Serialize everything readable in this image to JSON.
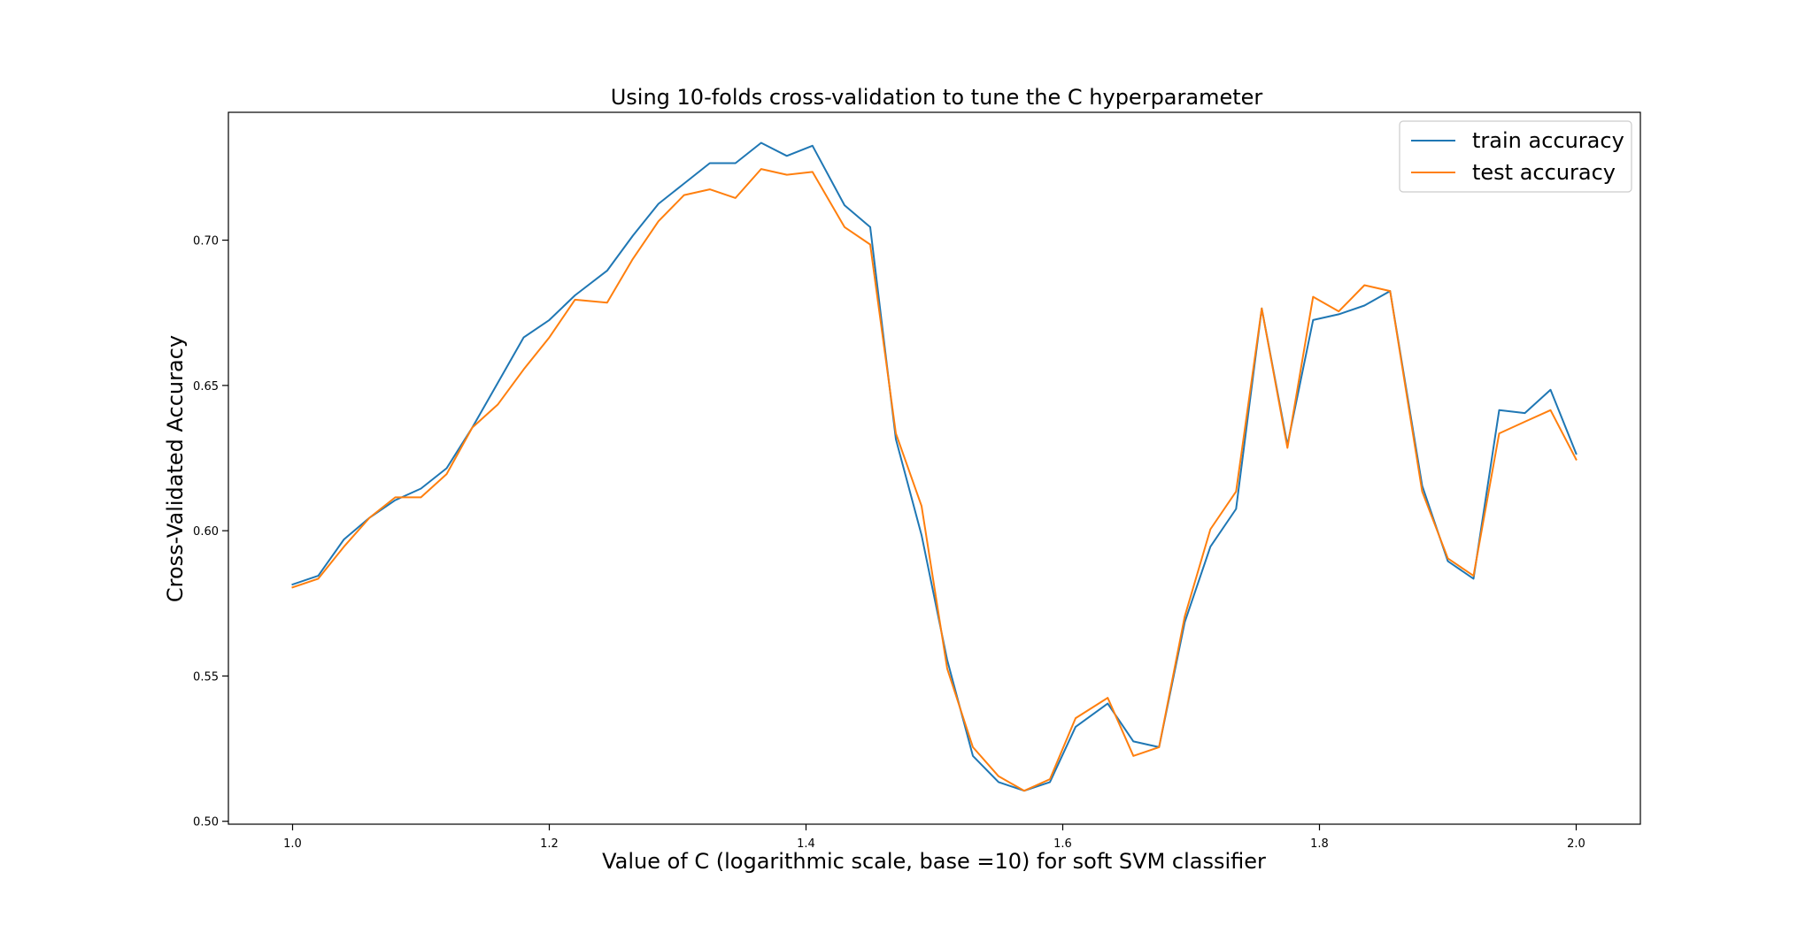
{
  "chart_data": {
    "type": "line",
    "title": "Using 10-folds cross-validation to tune the C hyperparameter",
    "xlabel": "Value of C (logarithmic scale, base =10) for soft SVM classifier",
    "ylabel": "Cross-Validated Accuracy",
    "xlim": [
      0.95,
      2.05
    ],
    "ylim": [
      0.499,
      0.744
    ],
    "xticks": [
      1.0,
      1.2,
      1.4,
      1.6,
      1.8,
      2.0
    ],
    "xtick_labels": [
      "1.0",
      "1.2",
      "1.4",
      "1.6",
      "1.8",
      "2.0"
    ],
    "yticks": [
      0.5,
      0.55,
      0.6,
      0.65,
      0.7
    ],
    "ytick_labels": [
      "0.50",
      "0.55",
      "0.60",
      "0.65",
      "0.70"
    ],
    "grid": false,
    "legend_position": "upper-right",
    "series": [
      {
        "name": "train accuracy",
        "color": "#1f77b4",
        "x": [
          1.0,
          1.02,
          1.04,
          1.06,
          1.08,
          1.1,
          1.12,
          1.14,
          1.16,
          1.18,
          1.2,
          1.22,
          1.245,
          1.265,
          1.285,
          1.305,
          1.325,
          1.345,
          1.365,
          1.385,
          1.405,
          1.43,
          1.45,
          1.47,
          1.49,
          1.51,
          1.53,
          1.55,
          1.57,
          1.59,
          1.61,
          1.635,
          1.655,
          1.675,
          1.695,
          1.715,
          1.735,
          1.755,
          1.775,
          1.795,
          1.815,
          1.835,
          1.855,
          1.88,
          1.9,
          1.92,
          1.94,
          1.96,
          1.98,
          2.0
        ],
        "y": [
          0.5815,
          0.5845,
          0.597,
          0.6045,
          0.6105,
          0.6145,
          0.6215,
          0.6355,
          0.651,
          0.6665,
          0.6725,
          0.681,
          0.6895,
          0.7015,
          0.7125,
          0.7195,
          0.7265,
          0.7265,
          0.7335,
          0.729,
          0.7325,
          0.712,
          0.7045,
          0.6315,
          0.5985,
          0.5555,
          0.5225,
          0.5135,
          0.5105,
          0.5135,
          0.5325,
          0.5405,
          0.5275,
          0.5255,
          0.5685,
          0.5945,
          0.6075,
          0.6765,
          0.6295,
          0.6725,
          0.6745,
          0.6775,
          0.6825,
          0.6155,
          0.5895,
          0.5835,
          0.6415,
          0.6405,
          0.6485,
          0.6265
        ]
      },
      {
        "name": "test accuracy",
        "color": "#ff7f0e",
        "x": [
          1.0,
          1.02,
          1.04,
          1.06,
          1.08,
          1.1,
          1.12,
          1.14,
          1.16,
          1.18,
          1.2,
          1.22,
          1.245,
          1.265,
          1.285,
          1.305,
          1.325,
          1.345,
          1.365,
          1.385,
          1.405,
          1.43,
          1.45,
          1.47,
          1.49,
          1.51,
          1.53,
          1.55,
          1.57,
          1.59,
          1.61,
          1.635,
          1.655,
          1.675,
          1.695,
          1.715,
          1.735,
          1.755,
          1.775,
          1.795,
          1.815,
          1.835,
          1.855,
          1.88,
          1.9,
          1.92,
          1.94,
          1.96,
          1.98,
          2.0
        ],
        "y": [
          0.5805,
          0.5835,
          0.5945,
          0.6045,
          0.6115,
          0.6115,
          0.6195,
          0.6355,
          0.6435,
          0.6555,
          0.6665,
          0.6795,
          0.6785,
          0.6935,
          0.7065,
          0.7155,
          0.7175,
          0.7145,
          0.7245,
          0.7225,
          0.7235,
          0.7045,
          0.6985,
          0.6335,
          0.6085,
          0.5525,
          0.5255,
          0.5155,
          0.5105,
          0.5145,
          0.5355,
          0.5425,
          0.5225,
          0.5255,
          0.5705,
          0.6005,
          0.6135,
          0.6765,
          0.6285,
          0.6805,
          0.6755,
          0.6845,
          0.6825,
          0.6135,
          0.5905,
          0.5845,
          0.6335,
          0.6375,
          0.6415,
          0.6245
        ]
      }
    ]
  }
}
